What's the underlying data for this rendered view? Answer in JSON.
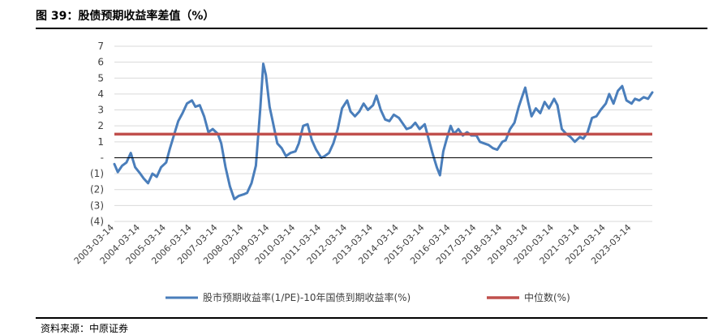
{
  "figure": {
    "title": "图 39：股债预期收益率差值（%）",
    "source": "资料来源：中原证券"
  },
  "colors": {
    "series_line": "#4a7ebb",
    "median_line": "#c0504d",
    "zero_line": "#000000",
    "grid": "#d9d9d9"
  },
  "chart_data": {
    "type": "line",
    "title": "",
    "xlabel": "",
    "ylabel": "",
    "ylim": [
      -4,
      7
    ],
    "yticks": [
      {
        "value": 7,
        "label": "7"
      },
      {
        "value": 6,
        "label": "6"
      },
      {
        "value": 5,
        "label": "5"
      },
      {
        "value": 4,
        "label": "4"
      },
      {
        "value": 3,
        "label": "3"
      },
      {
        "value": 2,
        "label": "2"
      },
      {
        "value": 1,
        "label": "1"
      },
      {
        "value": 0,
        "label": "-"
      },
      {
        "value": -1,
        "label": "(1)"
      },
      {
        "value": -2,
        "label": "(2)"
      },
      {
        "value": -3,
        "label": "(3)"
      },
      {
        "value": -4,
        "label": "(4)"
      }
    ],
    "xlim": [
      "2003-03-14",
      "2023-12-31"
    ],
    "xticks": [
      "2003-03-14",
      "2004-03-14",
      "2005-03-14",
      "2006-03-14",
      "2007-03-14",
      "2008-03-14",
      "2009-03-14",
      "2010-03-14",
      "2011-03-14",
      "2012-03-14",
      "2013-03-14",
      "2014-03-14",
      "2015-03-14",
      "2016-03-14",
      "2017-03-14",
      "2018-03-14",
      "2019-03-14",
      "2020-03-14",
      "2021-03-14",
      "2022-03-14",
      "2023-03-14"
    ],
    "grid": true,
    "legend_position": "bottom",
    "series": [
      {
        "name": "股市预期收益率(1/PE)-10年国债到期收益率(%)",
        "style": "line",
        "points": [
          [
            "2003-03-14",
            -0.4
          ],
          [
            "2003-05-01",
            -0.9
          ],
          [
            "2003-07-01",
            -0.5
          ],
          [
            "2003-09-01",
            -0.3
          ],
          [
            "2003-11-01",
            0.3
          ],
          [
            "2004-01-01",
            -0.6
          ],
          [
            "2004-03-14",
            -1.0
          ],
          [
            "2004-05-01",
            -1.3
          ],
          [
            "2004-07-01",
            -1.6
          ],
          [
            "2004-09-01",
            -1.0
          ],
          [
            "2004-11-01",
            -1.2
          ],
          [
            "2005-01-01",
            -0.6
          ],
          [
            "2005-03-14",
            -0.3
          ],
          [
            "2005-05-01",
            0.5
          ],
          [
            "2005-07-01",
            1.4
          ],
          [
            "2005-09-01",
            2.3
          ],
          [
            "2005-11-01",
            2.8
          ],
          [
            "2006-01-01",
            3.4
          ],
          [
            "2006-03-14",
            3.6
          ],
          [
            "2006-05-01",
            3.2
          ],
          [
            "2006-07-01",
            3.3
          ],
          [
            "2006-09-01",
            2.6
          ],
          [
            "2006-11-01",
            1.6
          ],
          [
            "2007-01-01",
            1.8
          ],
          [
            "2007-03-14",
            1.5
          ],
          [
            "2007-05-01",
            0.9
          ],
          [
            "2007-07-01",
            -0.6
          ],
          [
            "2007-09-01",
            -1.8
          ],
          [
            "2007-11-01",
            -2.6
          ],
          [
            "2008-01-01",
            -2.4
          ],
          [
            "2008-03-14",
            -2.3
          ],
          [
            "2008-05-01",
            -2.2
          ],
          [
            "2008-07-01",
            -1.6
          ],
          [
            "2008-09-01",
            -0.5
          ],
          [
            "2008-11-01",
            3.0
          ],
          [
            "2008-12-15",
            5.9
          ],
          [
            "2009-01-20",
            5.2
          ],
          [
            "2009-03-14",
            3.2
          ],
          [
            "2009-05-01",
            2.2
          ],
          [
            "2009-07-01",
            0.9
          ],
          [
            "2009-09-01",
            0.6
          ],
          [
            "2009-11-01",
            0.1
          ],
          [
            "2010-01-01",
            0.3
          ],
          [
            "2010-03-14",
            0.4
          ],
          [
            "2010-05-01",
            0.9
          ],
          [
            "2010-07-01",
            2.0
          ],
          [
            "2010-09-01",
            2.1
          ],
          [
            "2010-11-01",
            1.1
          ],
          [
            "2011-01-01",
            0.5
          ],
          [
            "2011-03-14",
            0.0
          ],
          [
            "2011-05-01",
            0.1
          ],
          [
            "2011-07-01",
            0.3
          ],
          [
            "2011-09-01",
            0.9
          ],
          [
            "2011-11-01",
            1.8
          ],
          [
            "2012-01-01",
            3.1
          ],
          [
            "2012-03-14",
            3.6
          ],
          [
            "2012-05-01",
            2.9
          ],
          [
            "2012-07-01",
            2.6
          ],
          [
            "2012-09-01",
            2.9
          ],
          [
            "2012-11-01",
            3.4
          ],
          [
            "2013-01-01",
            3.0
          ],
          [
            "2013-03-14",
            3.3
          ],
          [
            "2013-05-01",
            3.9
          ],
          [
            "2013-07-01",
            3.0
          ],
          [
            "2013-09-01",
            2.4
          ],
          [
            "2013-11-01",
            2.3
          ],
          [
            "2014-01-01",
            2.7
          ],
          [
            "2014-03-14",
            2.5
          ],
          [
            "2014-05-01",
            2.2
          ],
          [
            "2014-07-01",
            1.8
          ],
          [
            "2014-09-01",
            1.9
          ],
          [
            "2014-11-01",
            2.2
          ],
          [
            "2015-01-01",
            1.8
          ],
          [
            "2015-03-14",
            2.1
          ],
          [
            "2015-05-01",
            1.3
          ],
          [
            "2015-07-01",
            0.3
          ],
          [
            "2015-09-01",
            -0.6
          ],
          [
            "2015-10-15",
            -1.1
          ],
          [
            "2015-12-01",
            0.4
          ],
          [
            "2016-01-20",
            1.2
          ],
          [
            "2016-03-14",
            2.0
          ],
          [
            "2016-05-01",
            1.5
          ],
          [
            "2016-07-01",
            1.8
          ],
          [
            "2016-09-01",
            1.4
          ],
          [
            "2016-11-01",
            1.6
          ],
          [
            "2017-01-01",
            1.4
          ],
          [
            "2017-03-14",
            1.4
          ],
          [
            "2017-05-01",
            1.0
          ],
          [
            "2017-07-01",
            0.9
          ],
          [
            "2017-09-01",
            0.8
          ],
          [
            "2017-11-01",
            0.6
          ],
          [
            "2018-01-01",
            0.5
          ],
          [
            "2018-03-14",
            1.0
          ],
          [
            "2018-05-01",
            1.1
          ],
          [
            "2018-07-01",
            1.8
          ],
          [
            "2018-09-01",
            2.2
          ],
          [
            "2018-11-01",
            3.2
          ],
          [
            "2019-01-01",
            4.0
          ],
          [
            "2019-02-01",
            4.4
          ],
          [
            "2019-03-14",
            3.5
          ],
          [
            "2019-05-01",
            2.6
          ],
          [
            "2019-07-01",
            3.1
          ],
          [
            "2019-09-01",
            2.8
          ],
          [
            "2019-11-01",
            3.5
          ],
          [
            "2020-01-01",
            3.1
          ],
          [
            "2020-03-14",
            3.7
          ],
          [
            "2020-05-01",
            3.3
          ],
          [
            "2020-07-01",
            1.8
          ],
          [
            "2020-09-01",
            1.5
          ],
          [
            "2020-11-01",
            1.3
          ],
          [
            "2021-01-01",
            1.0
          ],
          [
            "2021-03-14",
            1.3
          ],
          [
            "2021-05-01",
            1.2
          ],
          [
            "2021-07-01",
            1.6
          ],
          [
            "2021-09-01",
            2.5
          ],
          [
            "2021-11-01",
            2.6
          ],
          [
            "2022-01-01",
            3.0
          ],
          [
            "2022-03-14",
            3.4
          ],
          [
            "2022-05-01",
            4.0
          ],
          [
            "2022-07-01",
            3.4
          ],
          [
            "2022-09-01",
            4.2
          ],
          [
            "2022-11-01",
            4.5
          ],
          [
            "2023-01-01",
            3.6
          ],
          [
            "2023-03-14",
            3.4
          ],
          [
            "2023-05-01",
            3.7
          ],
          [
            "2023-07-01",
            3.6
          ],
          [
            "2023-09-01",
            3.8
          ],
          [
            "2023-11-01",
            3.7
          ],
          [
            "2023-12-31",
            4.1
          ]
        ]
      },
      {
        "name": "中位数(%)",
        "style": "constant",
        "value": 1.48
      }
    ]
  }
}
